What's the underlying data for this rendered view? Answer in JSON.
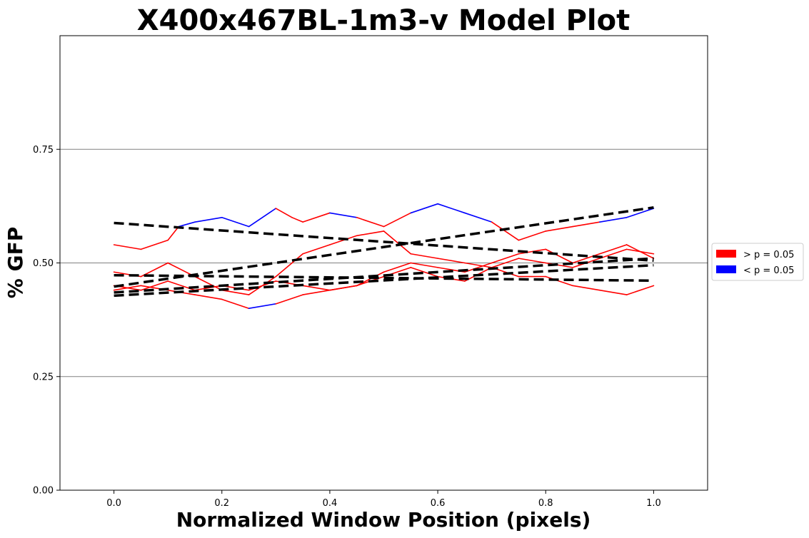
{
  "chart_data": {
    "type": "line",
    "title": "X400x467BL-1m3-v Model Plot",
    "xlabel": "Normalized Window Position (pixels)",
    "ylabel": "% GFP",
    "xlim": [
      -0.1,
      1.1
    ],
    "ylim": [
      0.0,
      1.0
    ],
    "xticks": [
      0.0,
      0.2,
      0.4,
      0.6,
      0.8,
      1.0
    ],
    "xtick_labels": [
      "0.0",
      "0.2",
      "0.4",
      "0.6",
      "0.8",
      "1.0"
    ],
    "yticks": [
      0.0,
      0.25,
      0.5,
      0.75
    ],
    "ytick_labels": [
      "0.00",
      "0.25",
      "0.50",
      "0.75"
    ],
    "grid": "horizontal",
    "legend": {
      "placement": "right-outside",
      "entries": [
        {
          "label": "> p = 0.05",
          "color": "#ff0000"
        },
        {
          "label": "< p = 0.05",
          "color": "#0000ff"
        }
      ]
    },
    "colors": {
      "not_significant": "#ff0000",
      "significant": "#0000ff",
      "fit": "#000000",
      "grid": "#808080"
    },
    "series": [
      {
        "x": [
          0.0,
          0.05,
          0.1,
          0.12,
          0.15,
          0.2,
          0.25,
          0.3,
          0.33,
          0.35,
          0.4,
          0.45,
          0.5,
          0.55,
          0.6,
          0.65,
          0.7,
          0.75,
          0.8,
          0.85,
          0.9,
          0.95,
          1.0
        ],
        "y": [
          0.54,
          0.53,
          0.55,
          0.58,
          0.59,
          0.6,
          0.58,
          0.62,
          0.6,
          0.59,
          0.61,
          0.6,
          0.58,
          0.61,
          0.63,
          0.61,
          0.59,
          0.55,
          0.57,
          0.58,
          0.59,
          0.6,
          0.62
        ],
        "significant": [
          false,
          false,
          false,
          true,
          true,
          true,
          true,
          true,
          false,
          false,
          true,
          true,
          false,
          true,
          true,
          true,
          true,
          false,
          false,
          false,
          true,
          true,
          true
        ]
      },
      {
        "x": [
          0.0,
          0.05,
          0.1,
          0.15,
          0.2,
          0.25,
          0.3,
          0.35,
          0.4,
          0.45,
          0.5,
          0.55,
          0.6,
          0.65,
          0.7,
          0.75,
          0.8,
          0.85,
          0.9,
          0.95,
          1.0
        ],
        "y": [
          0.48,
          0.47,
          0.5,
          0.47,
          0.44,
          0.43,
          0.47,
          0.52,
          0.54,
          0.56,
          0.57,
          0.52,
          0.51,
          0.5,
          0.49,
          0.51,
          0.5,
          0.49,
          0.51,
          0.53,
          0.52
        ],
        "significant": [
          false,
          false,
          false,
          false,
          false,
          false,
          false,
          false,
          false,
          false,
          false,
          false,
          false,
          false,
          false,
          false,
          false,
          false,
          false,
          false,
          false
        ]
      },
      {
        "x": [
          0.0,
          0.05,
          0.1,
          0.15,
          0.2,
          0.25,
          0.3,
          0.35,
          0.4,
          0.45,
          0.5,
          0.55,
          0.6,
          0.65,
          0.7,
          0.75,
          0.8,
          0.85,
          0.9,
          0.95,
          1.0
        ],
        "y": [
          0.44,
          0.45,
          0.44,
          0.43,
          0.42,
          0.4,
          0.41,
          0.43,
          0.44,
          0.45,
          0.48,
          0.5,
          0.49,
          0.48,
          0.5,
          0.52,
          0.53,
          0.5,
          0.52,
          0.54,
          0.51
        ],
        "significant": [
          false,
          false,
          false,
          false,
          false,
          true,
          true,
          false,
          false,
          false,
          false,
          false,
          false,
          false,
          false,
          false,
          false,
          false,
          false,
          false,
          false
        ]
      },
      {
        "x": [
          0.0,
          0.05,
          0.1,
          0.15,
          0.2,
          0.25,
          0.3,
          0.35,
          0.4,
          0.45,
          0.5,
          0.55,
          0.6,
          0.65,
          0.7,
          0.75,
          0.8,
          0.85,
          0.9,
          0.95,
          1.0
        ],
        "y": [
          0.45,
          0.44,
          0.46,
          0.44,
          0.45,
          0.44,
          0.46,
          0.45,
          0.44,
          0.45,
          0.47,
          0.49,
          0.47,
          0.46,
          0.49,
          0.47,
          0.47,
          0.45,
          0.44,
          0.43,
          0.45
        ],
        "significant": [
          false,
          false,
          false,
          false,
          false,
          false,
          false,
          false,
          false,
          false,
          false,
          false,
          false,
          false,
          false,
          false,
          false,
          false,
          false,
          false,
          false
        ]
      }
    ],
    "fits": [
      {
        "x": [
          0.0,
          1.0
        ],
        "y": [
          0.588,
          0.505
        ]
      },
      {
        "x": [
          0.0,
          1.0
        ],
        "y": [
          0.448,
          0.622
        ]
      },
      {
        "x": [
          0.0,
          1.0
        ],
        "y": [
          0.473,
          0.461
        ]
      },
      {
        "x": [
          0.0,
          1.0
        ],
        "y": [
          0.435,
          0.51
        ]
      },
      {
        "x": [
          0.0,
          1.0
        ],
        "y": [
          0.428,
          0.495
        ]
      }
    ]
  }
}
